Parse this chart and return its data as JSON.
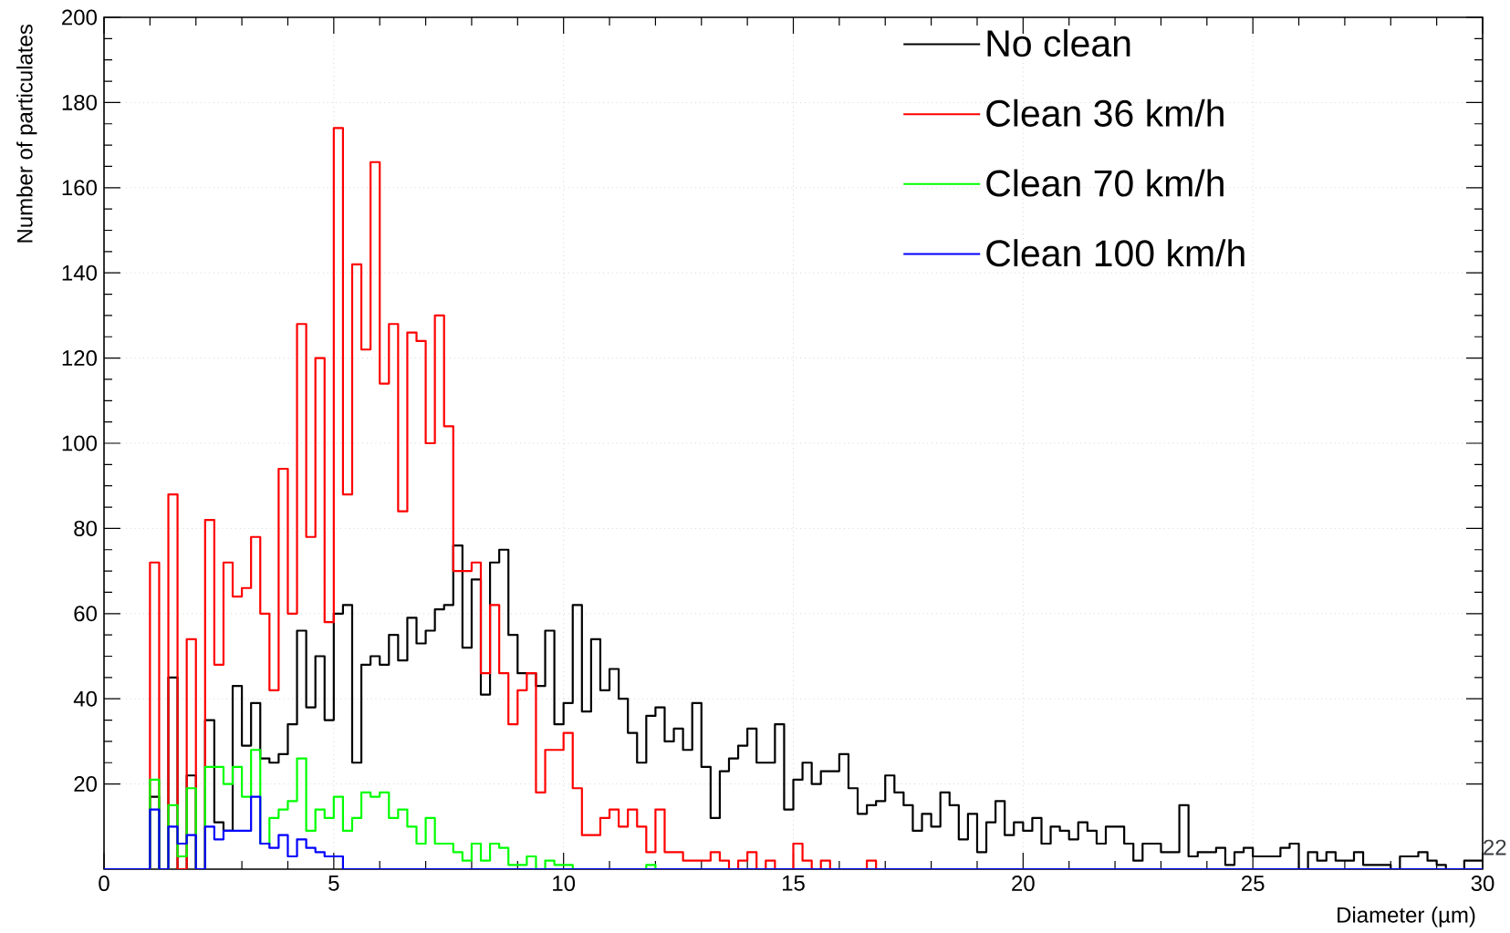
{
  "chart_data": {
    "type": "histogram",
    "xlabel": "Diameter (µm)",
    "ylabel": "Number of particulates",
    "bins": [
      0,
      0.2,
      0.4,
      0.6,
      0.8,
      1,
      1.2,
      1.4,
      1.6,
      1.8,
      2,
      2.2,
      2.4,
      2.6,
      2.8,
      3,
      3.2,
      3.4,
      3.6,
      3.8,
      4,
      4.2,
      4.4,
      4.6,
      4.8,
      5,
      5.2,
      5.4,
      5.6,
      5.8,
      6,
      6.2,
      6.4,
      6.6,
      6.8,
      7,
      7.2,
      7.4,
      7.6,
      7.8,
      8,
      8.2,
      8.4,
      8.6,
      8.8,
      9,
      9.2,
      9.4,
      9.6,
      9.8,
      10,
      10.2,
      10.4,
      10.6,
      10.8,
      11,
      11.2,
      11.4,
      11.6,
      11.8,
      12,
      12.2,
      12.4,
      12.6,
      12.8,
      13,
      13.2,
      13.4,
      13.6,
      13.8,
      14,
      14.2,
      14.4,
      14.6,
      14.8,
      15,
      15.2,
      15.4,
      15.6,
      15.8,
      16,
      16.2,
      16.4,
      16.6,
      16.8,
      17,
      17.2,
      17.4,
      17.6,
      17.8,
      18,
      18.2,
      18.4,
      18.6,
      18.8,
      19,
      19.2,
      19.4,
      19.6,
      19.8,
      20,
      20.2,
      20.4,
      20.6,
      20.8,
      21,
      21.2,
      21.4,
      21.6,
      21.8,
      22,
      22.2,
      22.4,
      22.6,
      22.8,
      23,
      23.2,
      23.4,
      23.6,
      23.8,
      24,
      24.2,
      24.4,
      24.6,
      24.8,
      25,
      25.2,
      25.4,
      25.6,
      25.8,
      26,
      26.2,
      26.4,
      26.6,
      26.8,
      27,
      27.2,
      27.4,
      27.6,
      27.8,
      28,
      28.2,
      28.4,
      28.6,
      28.8,
      29,
      29.2,
      29.4,
      29.6,
      29.8,
      30
    ],
    "series": [
      {
        "name": "No clean",
        "color": "#000000",
        "values": [
          0,
          0,
          0,
          0,
          0,
          17,
          0,
          45,
          0,
          22,
          0,
          35,
          11,
          9,
          43,
          29,
          39,
          26,
          25,
          27,
          34,
          56,
          38,
          50,
          35,
          60,
          62,
          25,
          48,
          50,
          48,
          55,
          49,
          59,
          53,
          56,
          61,
          62,
          76,
          52,
          68,
          41,
          72,
          75,
          55,
          46,
          46,
          43,
          56,
          34,
          39,
          62,
          37,
          54,
          42,
          47,
          40,
          32,
          25,
          36,
          38,
          30,
          33,
          28,
          39,
          24,
          12,
          23,
          26,
          29,
          33,
          25,
          25,
          34,
          14,
          21,
          25,
          20,
          23,
          23,
          27,
          19,
          13,
          15,
          16,
          22,
          18,
          15,
          9,
          13,
          10,
          18,
          15,
          7,
          13,
          4,
          11,
          16,
          8,
          11,
          9,
          12,
          6,
          10,
          9,
          7,
          11,
          9,
          6,
          10,
          10,
          6,
          2,
          6,
          6,
          4,
          4,
          15,
          3,
          4,
          4,
          5,
          1,
          4,
          5,
          3,
          3,
          3,
          5,
          6,
          0,
          4,
          2,
          4,
          2,
          2,
          4,
          1,
          1,
          1,
          0,
          3,
          3,
          4,
          2,
          1,
          0,
          0,
          2,
          2
        ]
      },
      {
        "name": "Clean 36 km/h",
        "color": "#ff0000",
        "values": [
          0,
          0,
          0,
          0,
          0,
          72,
          0,
          88,
          0,
          54,
          0,
          82,
          48,
          72,
          64,
          66,
          78,
          60,
          42,
          94,
          60,
          128,
          78,
          120,
          58,
          174,
          88,
          142,
          122,
          166,
          114,
          128,
          84,
          126,
          124,
          100,
          130,
          104,
          70,
          70,
          72,
          46,
          62,
          46,
          34,
          42,
          46,
          18,
          28,
          28,
          32,
          19,
          8,
          8,
          12,
          14,
          10,
          14,
          10,
          4,
          14,
          4,
          4,
          2,
          2,
          2,
          4,
          2,
          0,
          2,
          4,
          0,
          2,
          0,
          0,
          6,
          2,
          0,
          2,
          0,
          0,
          0,
          0,
          2,
          0,
          0,
          0,
          0,
          0,
          0,
          0,
          0,
          0,
          0,
          0,
          0,
          0,
          0,
          0,
          0,
          0,
          0,
          0,
          0,
          0,
          0,
          0,
          0,
          0,
          0,
          0,
          0,
          0,
          0,
          0,
          0,
          0,
          0,
          0,
          0,
          0,
          0,
          0,
          0,
          0,
          0,
          0,
          0,
          0,
          0,
          0,
          0,
          0,
          0,
          0,
          0,
          0,
          0,
          0,
          0,
          0,
          0,
          0,
          0,
          0,
          0,
          0,
          0,
          0,
          0
        ]
      },
      {
        "name": "Clean 70 km/h",
        "color": "#00ff00",
        "values": [
          0,
          0,
          0,
          0,
          0,
          21,
          0,
          15,
          3,
          19,
          0,
          24,
          24,
          20,
          24,
          17,
          28,
          6,
          12,
          14,
          16,
          26,
          9,
          14,
          12,
          17,
          9,
          12,
          18,
          17,
          18,
          12,
          14,
          10,
          6,
          12,
          6,
          6,
          4,
          2,
          6,
          2,
          6,
          5,
          1,
          1,
          3,
          0,
          2,
          1,
          1,
          0,
          0,
          0,
          0,
          0,
          0,
          0,
          0,
          1,
          0,
          0,
          0,
          0,
          0,
          0,
          0,
          0,
          0,
          0,
          0,
          0,
          0,
          0,
          0,
          0,
          0,
          0,
          0,
          0,
          0,
          0,
          0,
          0,
          0,
          0,
          0,
          0,
          0,
          0,
          0,
          0,
          0,
          0,
          0,
          0,
          0,
          0,
          0,
          0,
          0,
          0,
          0,
          0,
          0,
          0,
          0,
          0,
          0,
          0,
          0,
          0,
          0,
          0,
          0,
          0,
          0,
          0,
          0,
          0,
          0,
          0,
          0,
          0,
          0,
          0,
          0,
          0,
          0,
          0,
          0,
          0,
          0,
          0,
          0,
          0,
          0,
          0,
          0,
          0,
          0,
          0,
          0,
          0,
          0,
          0,
          0,
          0,
          0,
          0
        ]
      },
      {
        "name": "Clean 100 km/h",
        "color": "#0000ff",
        "values": [
          0,
          0,
          0,
          0,
          0,
          14,
          0,
          10,
          6,
          8,
          0,
          10,
          7,
          9,
          9,
          9,
          17,
          6,
          5,
          8,
          3,
          7,
          5,
          4,
          3,
          3,
          0,
          0,
          0,
          0,
          0,
          0,
          0,
          0,
          0,
          0,
          0,
          0,
          0,
          0,
          0,
          0,
          0,
          0,
          0,
          0,
          0,
          0,
          0,
          0,
          0,
          0,
          0,
          0,
          0,
          0,
          0,
          0,
          0,
          0,
          0,
          0,
          0,
          0,
          0,
          0,
          0,
          0,
          0,
          0,
          0,
          0,
          0,
          0,
          0,
          0,
          0,
          0,
          0,
          0,
          0,
          0,
          0,
          0,
          0,
          0,
          0,
          0,
          0,
          0,
          0,
          0,
          0,
          0,
          0,
          0,
          0,
          0,
          0,
          0,
          0,
          0,
          0,
          0,
          0,
          0,
          0,
          0,
          0,
          0,
          0,
          0,
          0,
          0,
          0,
          0,
          0,
          0,
          0,
          0,
          0,
          0,
          0,
          0,
          0,
          0,
          0,
          0,
          0,
          0,
          0,
          0,
          0,
          0,
          0,
          0,
          0,
          0,
          0,
          0,
          0,
          0,
          0,
          0,
          0,
          0,
          0,
          0,
          0,
          0
        ]
      }
    ],
    "xlim": [
      0,
      30
    ],
    "ylim": [
      0,
      200
    ],
    "xticks": [
      0,
      5,
      10,
      15,
      20,
      25,
      30
    ],
    "yticks": [
      20,
      40,
      60,
      80,
      100,
      120,
      140,
      160,
      180,
      200
    ],
    "grid": true,
    "legend": "top right",
    "annotations": [
      "22"
    ]
  }
}
